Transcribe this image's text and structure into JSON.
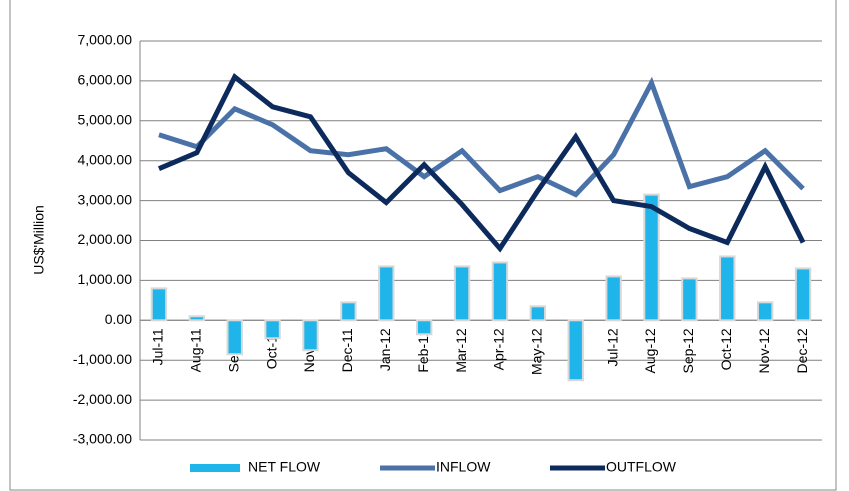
{
  "chart_data": {
    "type": "bar-line",
    "y_label": "US$'Million",
    "categories": [
      "Jul-11",
      "Aug-11",
      "Sep-11",
      "Oct-11",
      "Nov-11",
      "Dec-11",
      "Jan-12",
      "Feb-12",
      "Mar-12",
      "Apr-12",
      "May-12",
      "Jun-12",
      "Jul-12",
      "Aug-12",
      "Sep-12",
      "Oct-12",
      "Nov-12",
      "Dec-12"
    ],
    "series": [
      {
        "name": "NET FLOW",
        "kind": "bar",
        "color": "#1fb5ea",
        "values": [
          800,
          100,
          -850,
          -450,
          -750,
          450,
          1350,
          -350,
          1350,
          1450,
          350,
          -1500,
          1100,
          3150,
          1050,
          1600,
          450,
          1300
        ]
      },
      {
        "name": "INFLOW",
        "kind": "line",
        "color": "#4a72a8",
        "values": [
          4650,
          4350,
          5300,
          4900,
          4250,
          4150,
          4300,
          3600,
          4250,
          3250,
          3600,
          3150,
          4150,
          5950,
          3350,
          3600,
          4250,
          3300
        ]
      },
      {
        "name": "OUTFLOW",
        "kind": "line",
        "color": "#0c2a5c",
        "values": [
          3800,
          4200,
          6100,
          5350,
          5100,
          3700,
          2950,
          3900,
          2900,
          1800,
          3250,
          4600,
          3000,
          2850,
          2300,
          1950,
          3850,
          1950
        ]
      }
    ],
    "ylim": [
      -3000,
      7000
    ],
    "yticks": [
      {
        "value": -3000,
        "label": "-3,000.00"
      },
      {
        "value": -2000,
        "label": "-2,000.00"
      },
      {
        "value": -1000,
        "label": "-1,000.00"
      },
      {
        "value": 0,
        "label": "0.00"
      },
      {
        "value": 1000,
        "label": "1,000.00"
      },
      {
        "value": 2000,
        "label": "2,000.00"
      },
      {
        "value": 3000,
        "label": "3,000.00"
      },
      {
        "value": 4000,
        "label": "4,000.00"
      },
      {
        "value": 5000,
        "label": "5,000.00"
      },
      {
        "value": 6000,
        "label": "6,000.00"
      },
      {
        "value": 7000,
        "label": "7,000.00"
      }
    ],
    "grid": true
  }
}
